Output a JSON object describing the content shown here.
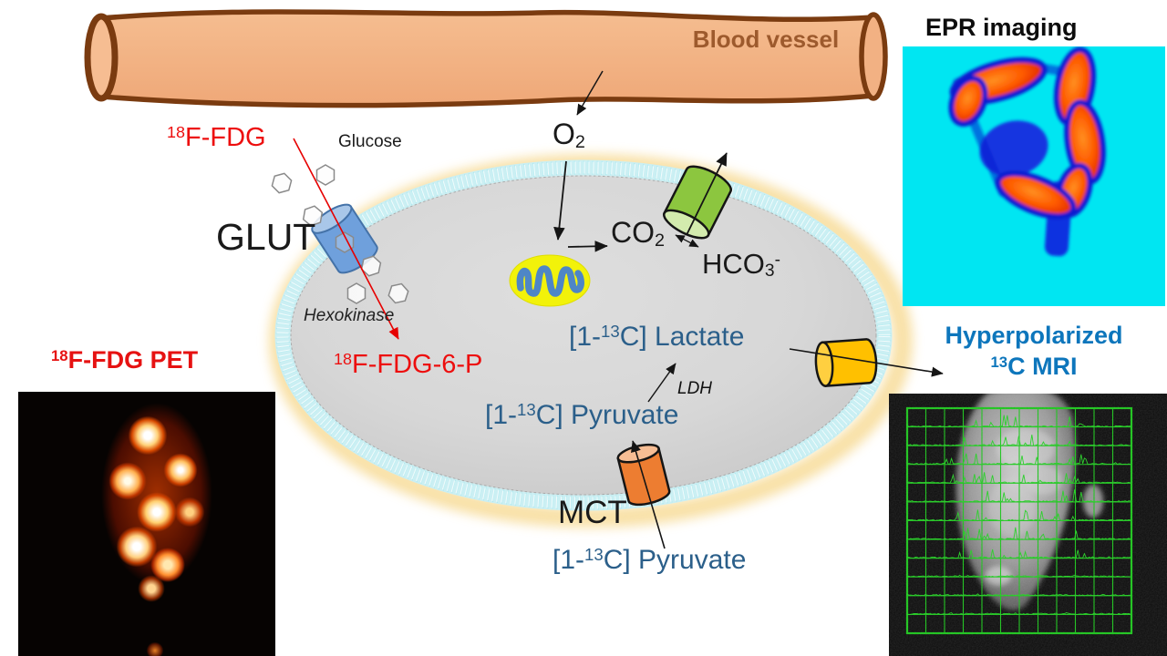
{
  "vessel": {
    "label": "Blood vessel"
  },
  "epr": {
    "title": "EPR imaging"
  },
  "pet": {
    "title_sup": "18",
    "title_main": "F-FDG PET"
  },
  "mri": {
    "title_line1": "Hyperpolarized",
    "title_sup": "13",
    "title_rest": "C MRI"
  },
  "cell": {
    "fdg_sup": "18",
    "fdg": "F-FDG",
    "glucose": "Glucose",
    "glut": "GLUT",
    "hexokinase": "Hexokinase",
    "fdg6p_sup": "18",
    "fdg6p": "F-FDG-6-P",
    "o2": "O",
    "o2_sub": "2",
    "co2": "CO",
    "co2_sub": "2",
    "hco3": "HCO",
    "hco3_sub": "3",
    "hco3_sup": "-",
    "c13": "13",
    "lactate_pre": "[1-",
    "lactate_post": "C] Lactate",
    "ldh": "LDH",
    "pyruvate_pre": "[1-",
    "pyruvate_post": "C] Pyruvate",
    "mct": "MCT"
  },
  "colors": {
    "accent_red": "#ed0e0e",
    "steel_blue_label": "#2b5f8a",
    "bright_blue_label": "#0d76bc",
    "vessel_text_brown": "#9d5a2d",
    "vessel_fill": "#f2b183",
    "vessel_outline": "#7a3b10",
    "cell_gray": "#d9d9d9",
    "membrane_cyan": "#cbeff3",
    "glow_yellow": "#f8dfa2",
    "mitochondria_yellow": "#f2f20a",
    "mitochondria_cristae_blue": "#4e86c6",
    "glut_transporter_blue": "#6fa0dc",
    "bicarbonate_transporter_green": "#8cc63f",
    "lactate_transporter_yellow": "#ffc000",
    "mct_transporter_orange": "#ed7d31",
    "epr_background_cyan": "#00e6f2",
    "mri_grid_green": "#19c519"
  }
}
